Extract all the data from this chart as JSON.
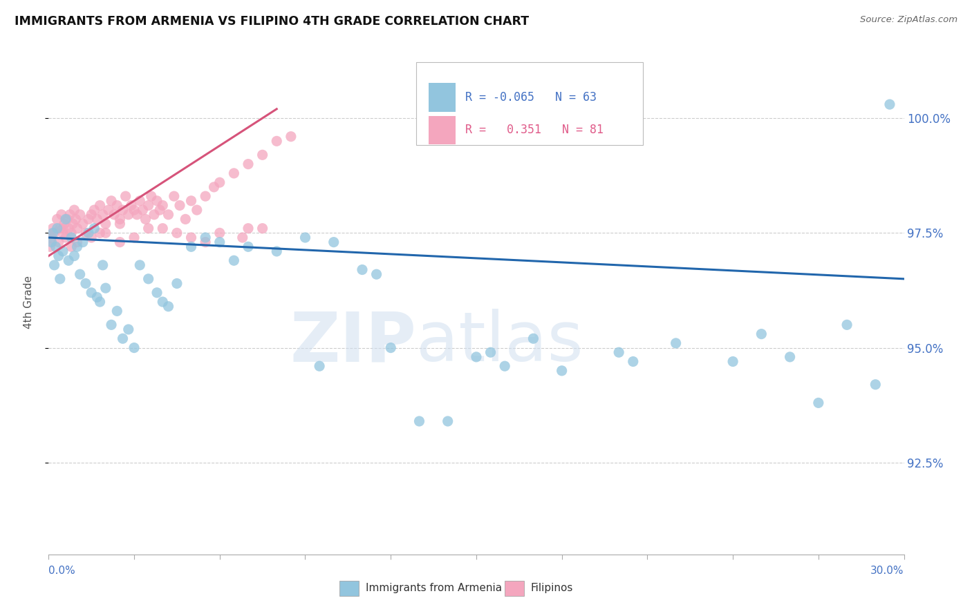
{
  "title": "IMMIGRANTS FROM ARMENIA VS FILIPINO 4TH GRADE CORRELATION CHART",
  "source": "Source: ZipAtlas.com",
  "ylabel": "4th Grade",
  "xlim": [
    0.0,
    30.0
  ],
  "ylim": [
    90.5,
    101.5
  ],
  "legend_r_blue": "-0.065",
  "legend_n_blue": "63",
  "legend_r_pink": "0.351",
  "legend_n_pink": "81",
  "blue_color": "#92c5de",
  "pink_color": "#f4a6be",
  "blue_line_color": "#2166ac",
  "pink_line_color": "#d6537a",
  "ytick_positions": [
    92.5,
    95.0,
    97.5,
    100.0
  ],
  "ytick_labels": [
    "92.5%",
    "95.0%",
    "97.5%",
    "100.0%"
  ],
  "blue_trend_x": [
    0.0,
    30.0
  ],
  "blue_trend_y": [
    97.4,
    96.5
  ],
  "pink_trend_x": [
    0.0,
    8.0
  ],
  "pink_trend_y": [
    97.0,
    100.2
  ],
  "watermark_zip": "ZIP",
  "watermark_atlas": "atlas",
  "blue_scatter_x": [
    0.1,
    0.15,
    0.2,
    0.25,
    0.3,
    0.35,
    0.4,
    0.5,
    0.6,
    0.7,
    0.8,
    0.9,
    1.0,
    1.1,
    1.2,
    1.3,
    1.4,
    1.5,
    1.6,
    1.7,
    1.8,
    1.9,
    2.0,
    2.2,
    2.4,
    2.6,
    2.8,
    3.0,
    3.2,
    3.5,
    3.8,
    4.0,
    4.5,
    5.0,
    5.5,
    6.0,
    6.5,
    7.0,
    8.0,
    9.0,
    10.0,
    11.0,
    12.0,
    13.0,
    14.0,
    15.0,
    16.0,
    17.0,
    18.0,
    20.0,
    22.0,
    24.0,
    25.0,
    26.0,
    27.0,
    28.0,
    29.0,
    29.5,
    15.5,
    20.5,
    11.5,
    9.5,
    4.2
  ],
  "blue_scatter_y": [
    97.3,
    97.5,
    96.8,
    97.2,
    97.6,
    97.0,
    96.5,
    97.1,
    97.8,
    96.9,
    97.4,
    97.0,
    97.2,
    96.6,
    97.3,
    96.4,
    97.5,
    96.2,
    97.6,
    96.1,
    96.0,
    96.8,
    96.3,
    95.5,
    95.8,
    95.2,
    95.4,
    95.0,
    96.8,
    96.5,
    96.2,
    96.0,
    96.4,
    97.2,
    97.4,
    97.3,
    96.9,
    97.2,
    97.1,
    97.4,
    97.3,
    96.7,
    95.0,
    93.4,
    93.4,
    94.8,
    94.6,
    95.2,
    94.5,
    94.9,
    95.1,
    94.7,
    95.3,
    94.8,
    93.8,
    95.5,
    94.2,
    100.3,
    94.9,
    94.7,
    96.6,
    94.6,
    95.9
  ],
  "pink_scatter_x": [
    0.05,
    0.1,
    0.15,
    0.2,
    0.3,
    0.35,
    0.4,
    0.45,
    0.5,
    0.55,
    0.6,
    0.65,
    0.7,
    0.75,
    0.8,
    0.85,
    0.9,
    0.95,
    1.0,
    1.1,
    1.2,
    1.3,
    1.4,
    1.5,
    1.6,
    1.7,
    1.8,
    1.9,
    2.0,
    2.1,
    2.2,
    2.3,
    2.4,
    2.5,
    2.6,
    2.7,
    2.8,
    2.9,
    3.0,
    3.1,
    3.2,
    3.3,
    3.4,
    3.5,
    3.6,
    3.7,
    3.8,
    3.9,
    4.0,
    4.2,
    4.4,
    4.6,
    4.8,
    5.0,
    5.2,
    5.5,
    5.8,
    6.0,
    6.5,
    7.0,
    7.5,
    8.0,
    2.5,
    1.5,
    0.8,
    3.5,
    4.5,
    5.5,
    6.8,
    7.5,
    2.0,
    3.0,
    0.5,
    1.0,
    1.8,
    2.5,
    4.0,
    5.0,
    6.0,
    7.0,
    8.5
  ],
  "pink_scatter_y": [
    97.2,
    97.4,
    97.6,
    97.5,
    97.8,
    97.3,
    97.6,
    97.9,
    97.5,
    97.7,
    97.4,
    97.8,
    97.6,
    97.9,
    97.5,
    97.7,
    98.0,
    97.8,
    97.6,
    97.9,
    97.7,
    97.5,
    97.8,
    97.9,
    98.0,
    97.8,
    98.1,
    97.9,
    97.7,
    98.0,
    98.2,
    97.9,
    98.1,
    97.8,
    98.0,
    98.3,
    97.9,
    98.1,
    98.0,
    97.9,
    98.2,
    98.0,
    97.8,
    98.1,
    98.3,
    97.9,
    98.2,
    98.0,
    98.1,
    97.9,
    98.3,
    98.1,
    97.8,
    98.2,
    98.0,
    98.3,
    98.5,
    98.6,
    98.8,
    99.0,
    99.2,
    99.5,
    97.3,
    97.4,
    97.2,
    97.6,
    97.5,
    97.3,
    97.4,
    97.6,
    97.5,
    97.4,
    97.6,
    97.3,
    97.5,
    97.7,
    97.6,
    97.4,
    97.5,
    97.6,
    99.6
  ]
}
